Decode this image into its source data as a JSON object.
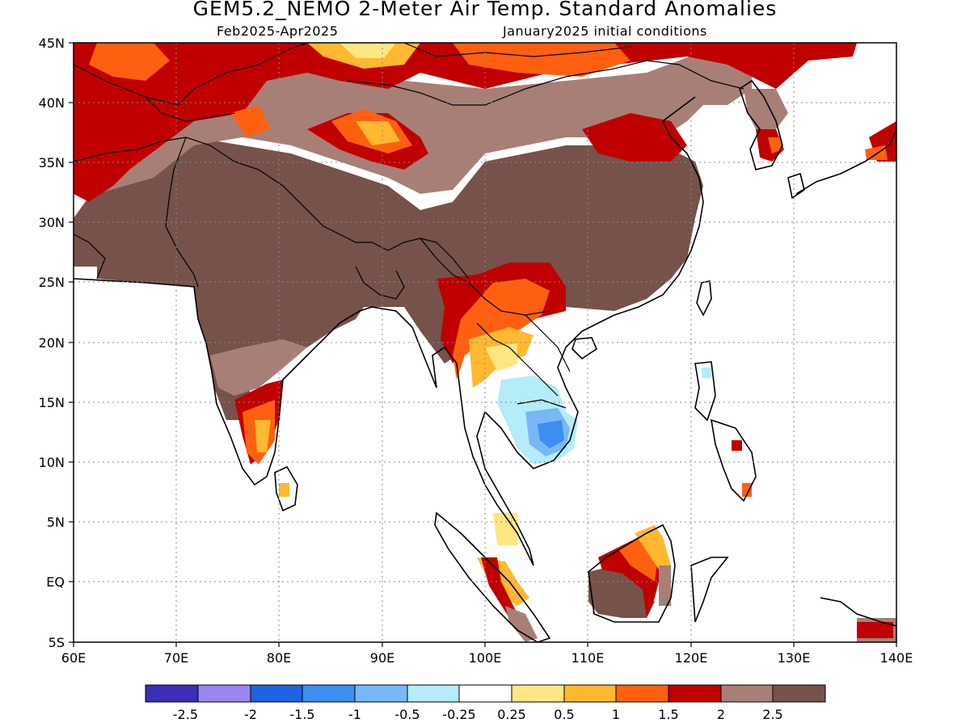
{
  "header": {
    "title": "GEM5.2_NEMO 2-Meter Air Temp. Standard Anomalies",
    "period": "Feb2025-Apr2025",
    "init": "January2025 initial conditions"
  },
  "axes": {
    "lon_ticks": [
      "60E",
      "70E",
      "80E",
      "90E",
      "100E",
      "110E",
      "120E",
      "130E",
      "140E"
    ],
    "lat_ticks": [
      "45N",
      "40N",
      "35N",
      "30N",
      "25N",
      "20N",
      "15N",
      "10N",
      "5N",
      "EQ",
      "5S"
    ],
    "lon_range": [
      60,
      140
    ],
    "lat_range": [
      -5,
      45
    ]
  },
  "legend": {
    "colors": [
      "#3a2fb8",
      "#9b86f0",
      "#1e63e6",
      "#3c8ef0",
      "#78b8f5",
      "#b4ecf8",
      "#ffffff",
      "#ffe680",
      "#ffb830",
      "#ff6010",
      "#c00000",
      "#a87f77",
      "#76524a"
    ],
    "labels": [
      "-2.5",
      "-2",
      "-1.5",
      "-1",
      "-0.5",
      "-0.25",
      "0.25",
      "0.5",
      "1",
      "1.5",
      "2",
      "2.5"
    ]
  },
  "palette": {
    "brown": "#76524a",
    "taupe": "#a87f77",
    "red": "#c00000",
    "orange": "#ff6010",
    "amber": "#ffb830",
    "yellow": "#ffe680",
    "lightblue": "#b4ecf8",
    "midblue": "#78b8f5",
    "blue": "#3c8ef0"
  }
}
